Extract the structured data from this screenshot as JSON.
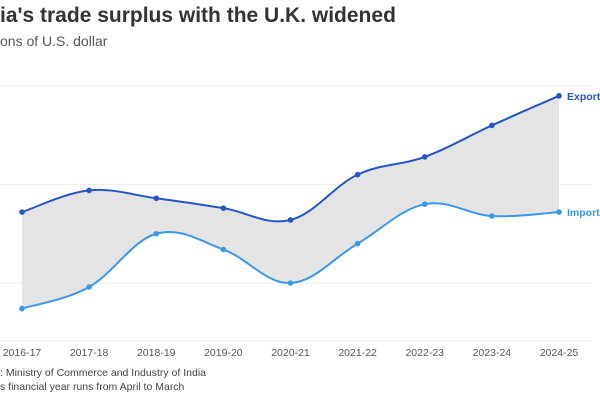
{
  "chart_data": {
    "type": "area",
    "title": "ia's trade surplus with the U.K. widened",
    "subtitle": "ons of U.S. dollar",
    "categories": [
      "2016-17",
      "2017-18",
      "2018-19",
      "2019-20",
      "2020-21",
      "2021-22",
      "2022-23",
      "2023-24",
      "2024-25"
    ],
    "series": [
      {
        "name": "Export",
        "color": "#2456c8",
        "values": [
          8.6,
          9.7,
          9.3,
          8.8,
          8.2,
          10.5,
          11.4,
          13.0,
          14.5
        ]
      },
      {
        "name": "Import",
        "color": "#3a98e8",
        "values": [
          3.7,
          4.8,
          7.5,
          6.7,
          5.0,
          7.0,
          9.0,
          8.4,
          8.6
        ]
      }
    ],
    "fill_between_color": "#e4e4e4",
    "ylim": [
      2,
      15
    ],
    "gridlines": [
      5,
      10,
      15
    ],
    "grid": true,
    "legend": "direct labels at line ends"
  },
  "footer": {
    "source": ": Ministry of Commerce and Industry of India",
    "note": "s financial year runs from April to March"
  }
}
